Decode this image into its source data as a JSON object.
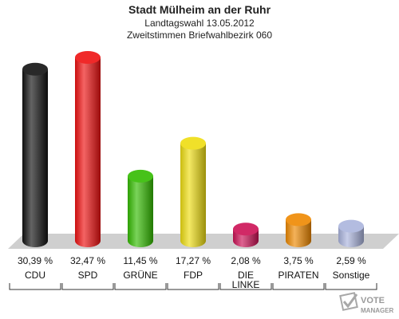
{
  "header": {
    "title": "Stadt Mülheim an der Ruhr",
    "subtitle1": "Landtagswahl 13.05.2012",
    "subtitle2": "Zweitstimmen Briefwahlbezirk 060"
  },
  "logo": {
    "line1": "VOTE",
    "line2": "MANAGER"
  },
  "chart_data": {
    "type": "bar",
    "title": "Stadt Mülheim an der Ruhr",
    "subtitle": "Landtagswahl 13.05.2012 / Zweitstimmen Briefwahlbezirk 060",
    "categories": [
      "CDU",
      "SPD",
      "GRÜNE",
      "FDP",
      "DIE LINKE",
      "PIRATEN",
      "Sonstige"
    ],
    "category_lines": [
      [
        "CDU"
      ],
      [
        "SPD"
      ],
      [
        "GRÜNE"
      ],
      [
        "FDP"
      ],
      [
        "DIE",
        "LINKE"
      ],
      [
        "PIRATEN"
      ],
      [
        "Sonstige"
      ]
    ],
    "values": [
      30.39,
      32.47,
      11.45,
      17.27,
      2.08,
      3.75,
      2.59
    ],
    "value_labels": [
      "30,39 %",
      "32,47 %",
      "11,45 %",
      "17,27 %",
      "2,08 %",
      "3,75 %",
      "2,59 %"
    ],
    "colors": [
      "#111111",
      "#ee1111",
      "#33bb00",
      "#eedd11",
      "#cc1155",
      "#ee8800",
      "#aab4dd"
    ],
    "unit": "%",
    "ylim": [
      0,
      32.47
    ],
    "grid": false,
    "legend": "none"
  }
}
